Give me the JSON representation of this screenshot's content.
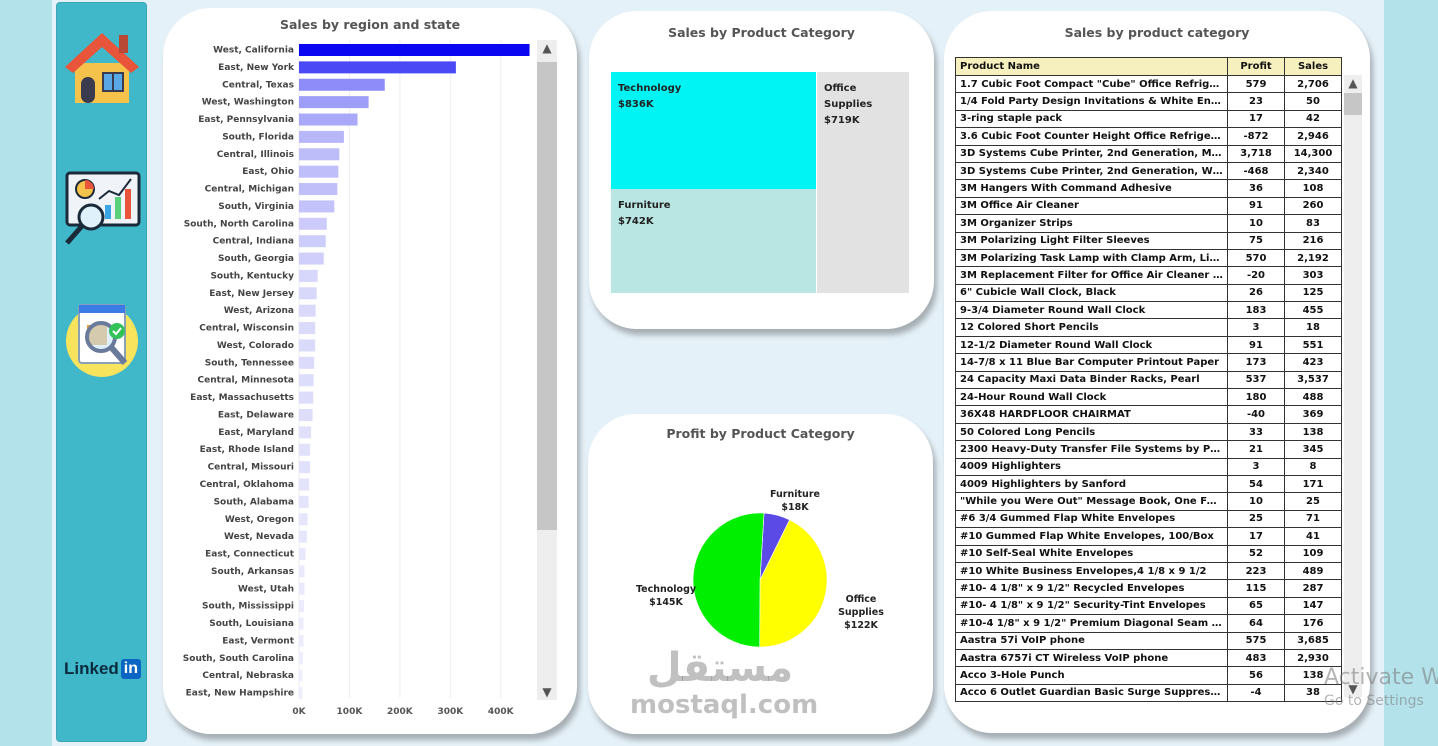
{
  "sidebar": {
    "items": [
      {
        "icon": "home-icon"
      },
      {
        "icon": "analytics-monitor-icon"
      },
      {
        "icon": "product-search-icon"
      }
    ],
    "linkedin": {
      "text": "Linked",
      "badge": "in"
    }
  },
  "region_chart": {
    "title": "Sales by region and state",
    "chart_data": {
      "type": "bar",
      "orientation": "horizontal",
      "title": "Sales by region and state",
      "categories": [
        "West, California",
        "East, New York",
        "Central, Texas",
        "West, Washington",
        "East, Pennsylvania",
        "South, Florida",
        "Central, Illinois",
        "East, Ohio",
        "Central, Michigan",
        "South, Virginia",
        "South, North Carolina",
        "Central, Indiana",
        "South, Georgia",
        "South, Kentucky",
        "East, New Jersey",
        "West, Arizona",
        "Central, Wisconsin",
        "West, Colorado",
        "South, Tennessee",
        "Central, Minnesota",
        "East, Massachusetts",
        "East, Delaware",
        "East, Maryland",
        "East, Rhode Island",
        "Central, Missouri",
        "Central, Oklahoma",
        "South, Alabama",
        "West, Oregon",
        "West, Nevada",
        "East, Connecticut",
        "South, Arkansas",
        "West, Utah",
        "South, Mississippi",
        "South, Louisiana",
        "East, Vermont",
        "South, South Carolina",
        "Central, Nebraska",
        "East, New Hampshire"
      ],
      "values": [
        457000,
        311000,
        170000,
        138000,
        116000,
        89000,
        80000,
        78000,
        76000,
        70000,
        55000,
        53000,
        49000,
        37000,
        35000,
        33000,
        32000,
        32000,
        30000,
        29000,
        28000,
        27000,
        24000,
        22000,
        22000,
        20000,
        19000,
        17000,
        16000,
        13000,
        11000,
        11000,
        10000,
        9000,
        9000,
        8000,
        7000,
        7000
      ],
      "xlim": [
        0,
        450000
      ],
      "xticks": [
        "0K",
        "100K",
        "200K",
        "300K",
        "400K"
      ],
      "xtick_values": [
        0,
        100000,
        200000,
        300000,
        400000
      ],
      "colors": {
        "max": "#0a06f2",
        "min": "#eeeefc"
      }
    }
  },
  "treemap": {
    "title": "Sales by Product Category",
    "chart_data": {
      "type": "treemap",
      "title": "Sales by Product Category",
      "categories": [
        "Technology",
        "Furniture",
        "Office Supplies"
      ],
      "values": [
        836000,
        742000,
        719000
      ],
      "labels": [
        "$836K",
        "$742K",
        "$719K"
      ],
      "colors": {
        "Technology": "#00f4f4",
        "Furniture": "#b9e5e2",
        "Office Supplies": "#e2e2e2"
      }
    }
  },
  "pie": {
    "title": "Profit by Product Category",
    "chart_data": {
      "type": "pie",
      "title": "Profit by Product Category",
      "categories": [
        "Furniture",
        "Office Supplies",
        "Technology"
      ],
      "values": [
        18000,
        122000,
        145000
      ],
      "labels": [
        "$18K",
        "$122K",
        "$145K"
      ],
      "colors": {
        "Furniture": "#5b4ae6",
        "Office Supplies": "#ffff00",
        "Technology": "#00ee00"
      }
    }
  },
  "product_table": {
    "title": "Sales by product category",
    "headers": [
      "Product Name",
      "Profit",
      "Sales"
    ],
    "rows": [
      [
        "1.7 Cubic Foot Compact \"Cube\" Office Refrigerators",
        "579",
        "2,706"
      ],
      [
        "1/4 Fold Party Design Invitations & White Envelopes, ..",
        "23",
        "50"
      ],
      [
        "3-ring staple pack",
        "17",
        "42"
      ],
      [
        "3.6 Cubic Foot Counter Height Office Refrigerator",
        "-872",
        "2,946"
      ],
      [
        "3D Systems Cube Printer, 2nd Generation, Magenta",
        "3,718",
        "14,300"
      ],
      [
        "3D Systems Cube Printer, 2nd Generation, White",
        "-468",
        "2,340"
      ],
      [
        "3M Hangers With Command Adhesive",
        "36",
        "108"
      ],
      [
        "3M Office Air Cleaner",
        "91",
        "260"
      ],
      [
        "3M Organizer Strips",
        "10",
        "83"
      ],
      [
        "3M Polarizing Light Filter Sleeves",
        "75",
        "216"
      ],
      [
        "3M Polarizing Task Lamp with Clamp Arm, Light Gray",
        "570",
        "2,192"
      ],
      [
        "3M Replacement Filter for Office Air Cleaner for 20' x..",
        "-20",
        "303"
      ],
      [
        "6\" Cubicle Wall Clock, Black",
        "26",
        "125"
      ],
      [
        "9-3/4 Diameter Round Wall Clock",
        "183",
        "455"
      ],
      [
        "12 Colored Short Pencils",
        "3",
        "18"
      ],
      [
        "12-1/2 Diameter Round Wall Clock",
        "91",
        "551"
      ],
      [
        "14-7/8 x 11 Blue Bar Computer Printout Paper",
        "173",
        "423"
      ],
      [
        "24 Capacity Maxi Data Binder Racks, Pearl",
        "537",
        "3,537"
      ],
      [
        "24-Hour Round Wall Clock",
        "180",
        "488"
      ],
      [
        "36X48 HARDFLOOR CHAIRMAT",
        "-40",
        "369"
      ],
      [
        "50 Colored Long Pencils",
        "33",
        "138"
      ],
      [
        "2300 Heavy-Duty Transfer File Systems by Perma",
        "21",
        "345"
      ],
      [
        "4009 Highlighters",
        "3",
        "8"
      ],
      [
        "4009 Highlighters by Sanford",
        "54",
        "171"
      ],
      [
        "\"While you Were Out\" Message Book, One Form per ..",
        "10",
        "25"
      ],
      [
        "#6 3/4 Gummed Flap White Envelopes",
        "25",
        "71"
      ],
      [
        "#10 Gummed Flap White Envelopes, 100/Box",
        "17",
        "41"
      ],
      [
        "#10 Self-Seal White Envelopes",
        "52",
        "109"
      ],
      [
        "#10 White Business Envelopes,4 1/8 x 9 1/2",
        "223",
        "489"
      ],
      [
        "#10- 4 1/8\" x 9 1/2\" Recycled Envelopes",
        "115",
        "287"
      ],
      [
        "#10- 4 1/8\" x 9 1/2\" Security-Tint Envelopes",
        "65",
        "147"
      ],
      [
        "#10-4 1/8\" x 9 1/2\" Premium Diagonal Seam Envelop..",
        "64",
        "176"
      ],
      [
        "Aastra 57i VoIP phone",
        "575",
        "3,685"
      ],
      [
        "Aastra 6757i CT Wireless VoIP phone",
        "483",
        "2,930"
      ],
      [
        "Acco 3-Hole Punch",
        "56",
        "138"
      ],
      [
        "Acco 6 Outlet Guardian Basic Surge Suppressor",
        "-4",
        "38"
      ]
    ]
  },
  "watermark": {
    "arabic": "مستقل",
    "latin": "mostaql.com"
  },
  "activation": {
    "line1": "Activate W",
    "line2": "Go to Settings"
  }
}
